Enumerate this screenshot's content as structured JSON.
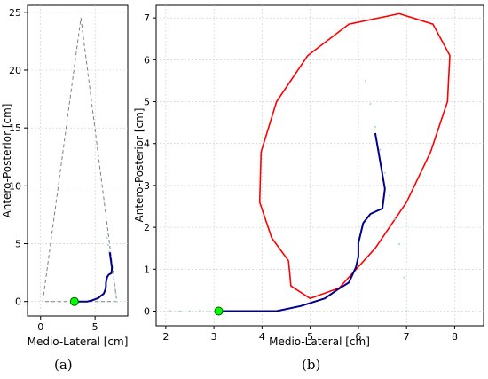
{
  "panel_labels": {
    "a": "(a)",
    "b": "(b)"
  },
  "chart_data": [
    {
      "type": "line",
      "panel": "(a)",
      "title": "",
      "xlabel": "Medio-Lateral [cm]",
      "ylabel": "Antero-Posterior [cm]",
      "xlim": [
        -1.2,
        8.0
      ],
      "ylim": [
        -1.25,
        25.6
      ],
      "xticks": [
        0,
        5
      ],
      "yticks": [
        0,
        5,
        10,
        15,
        20,
        25
      ],
      "grid": true,
      "colors": {
        "path": "#00008b",
        "scatter": "#add8e6",
        "triangle": "#808080",
        "marker": "#00ff00"
      },
      "series": [
        {
          "style": "dashed-gray",
          "x": [
            0.2,
            3.7,
            7.0,
            0.2
          ],
          "y": [
            0.0,
            24.5,
            0.0,
            0.0
          ]
        },
        {
          "style": "light-blue-scatter",
          "x": [
            6.1,
            6.2,
            6.3,
            6.4,
            6.5,
            6.6,
            6.7,
            6.8,
            6.9,
            7.0
          ],
          "y": [
            5.5,
            4.9,
            4.3,
            3.7,
            3.1,
            2.5,
            1.9,
            1.3,
            0.7,
            0.0
          ]
        },
        {
          "style": "dark-blue-line",
          "x": [
            3.1,
            4.3,
            4.8,
            5.3,
            5.55,
            5.8,
            5.95,
            6.0,
            6.0,
            6.1,
            6.25,
            6.5,
            6.55,
            6.35
          ],
          "y": [
            0.0,
            0.0,
            0.12,
            0.3,
            0.5,
            0.68,
            1.05,
            1.3,
            1.62,
            2.1,
            2.32,
            2.45,
            2.92,
            4.25
          ]
        }
      ],
      "start_marker": {
        "x": 3.1,
        "y": 0.0
      }
    },
    {
      "type": "line",
      "panel": "(b)",
      "title": "",
      "xlabel": "Medio-Lateral [cm]",
      "ylabel": "Antero-Posterior [cm]",
      "xlim": [
        1.8,
        8.6
      ],
      "ylim": [
        -0.35,
        7.3
      ],
      "xticks": [
        2,
        3,
        4,
        5,
        6,
        7,
        8
      ],
      "yticks": [
        0,
        1,
        2,
        3,
        4,
        5,
        6,
        7
      ],
      "grid": true,
      "colors": {
        "path": "#00008b",
        "scatter": "#add8e6",
        "ellipse": "#ff0000",
        "marker": "#00ff00"
      },
      "series": [
        {
          "style": "light-blue-scatter",
          "x": [
            2.1,
            2.3,
            2.5,
            2.7,
            2.9,
            6.15,
            6.25,
            6.35,
            6.45,
            6.55,
            6.65,
            6.75,
            6.85,
            6.95,
            7.0
          ],
          "y": [
            0.0,
            0.0,
            0.0,
            0.0,
            0.0,
            5.5,
            4.95,
            4.4,
            3.85,
            3.3,
            2.75,
            2.2,
            1.6,
            0.8,
            0.0
          ]
        },
        {
          "style": "dark-blue-line",
          "x": [
            3.1,
            4.3,
            4.8,
            5.3,
            5.55,
            5.8,
            5.95,
            6.0,
            6.0,
            6.1,
            6.25,
            6.5,
            6.55,
            6.35
          ],
          "y": [
            0.0,
            0.0,
            0.12,
            0.3,
            0.5,
            0.68,
            1.05,
            1.3,
            1.62,
            2.1,
            2.32,
            2.45,
            2.92,
            4.25
          ]
        }
      ],
      "ellipse": [
        [
          4.55,
          1.2
        ],
        [
          4.2,
          1.75
        ],
        [
          3.95,
          2.6
        ],
        [
          3.98,
          3.8
        ],
        [
          4.3,
          5.0
        ],
        [
          4.95,
          6.1
        ],
        [
          5.8,
          6.85
        ],
        [
          6.85,
          7.1
        ],
        [
          7.55,
          6.85
        ],
        [
          7.9,
          6.1
        ],
        [
          7.85,
          5.0
        ],
        [
          7.5,
          3.8
        ],
        [
          7.0,
          2.6
        ],
        [
          6.35,
          1.5
        ],
        [
          5.6,
          0.55
        ],
        [
          5.0,
          0.3
        ],
        [
          4.6,
          0.6
        ],
        [
          4.55,
          1.2
        ]
      ],
      "start_marker": {
        "x": 3.1,
        "y": 0.0
      }
    }
  ]
}
